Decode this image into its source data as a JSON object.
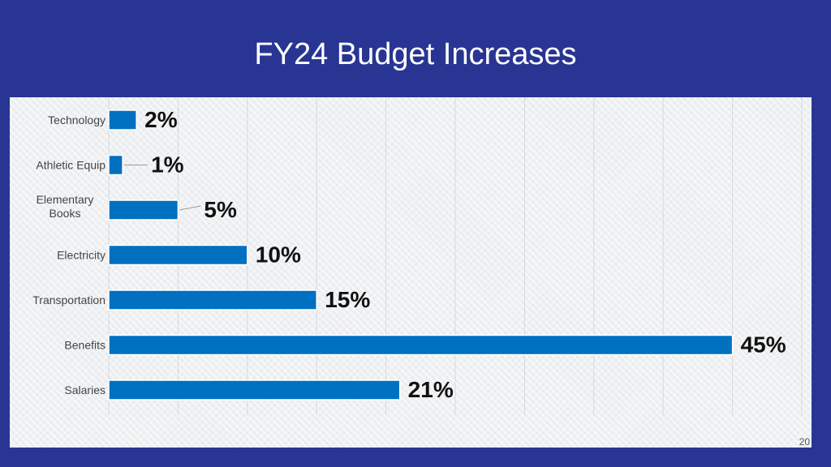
{
  "slide": {
    "title": "FY24 Budget Increases",
    "page_number": "20"
  },
  "colors": {
    "background": "#283593",
    "bar": "#0070C0",
    "panel": "#eef0f2"
  },
  "chart_data": {
    "type": "bar",
    "orientation": "horizontal",
    "categories": [
      "Technology",
      "Athletic Equip",
      "Elementary Books",
      "Electricity",
      "Transportation",
      "Benefits",
      "Salaries"
    ],
    "values": [
      2,
      1,
      5,
      10,
      15,
      45,
      21
    ],
    "data_labels": [
      "2%",
      "1%",
      "5%",
      "10%",
      "15%",
      "45%",
      "21%"
    ],
    "xlim": [
      0,
      50
    ],
    "grid": true,
    "legend": "none"
  }
}
